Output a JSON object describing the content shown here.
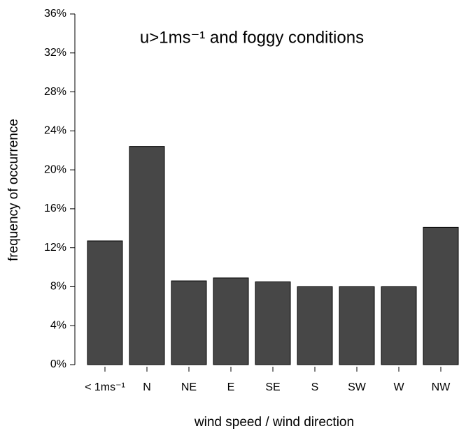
{
  "chart_data": {
    "type": "bar",
    "title": "u>1ms⁻¹ and foggy conditions",
    "x_label": "wind speed / wind direction",
    "y_label": "frequency of occurrence",
    "categories": [
      "< 1ms⁻¹",
      "N",
      "NE",
      "E",
      "SE",
      "S",
      "SW",
      "W",
      "NW"
    ],
    "values": [
      12.7,
      22.4,
      8.6,
      8.9,
      8.5,
      8.0,
      8.0,
      8.0,
      14.1
    ],
    "color": "#474747",
    "ylim": [
      0,
      36
    ],
    "yticks": [
      {
        "value": 0,
        "label": "0%"
      },
      {
        "value": 4,
        "label": "4%"
      },
      {
        "value": 8,
        "label": "8%"
      },
      {
        "value": 12,
        "label": "12%"
      },
      {
        "value": 16,
        "label": "16%"
      },
      {
        "value": 20,
        "label": "20%"
      },
      {
        "value": 24,
        "label": "24%"
      },
      {
        "value": 28,
        "label": "28%"
      },
      {
        "value": 32,
        "label": "32%"
      },
      {
        "value": 36,
        "label": "36%"
      }
    ]
  }
}
